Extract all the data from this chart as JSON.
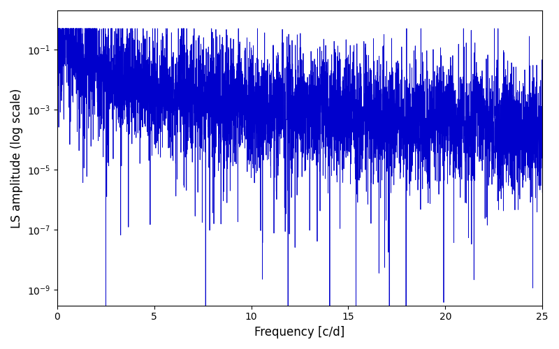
{
  "title": "",
  "xlabel": "Frequency [c/d]",
  "ylabel": "LS amplitude (log scale)",
  "xlim": [
    0,
    25
  ],
  "ylim": [
    3e-10,
    2.0
  ],
  "freq_max": 25.0,
  "n_points": 5000,
  "line_color": "#0000cc",
  "line_width": 0.6,
  "seed": 12345,
  "background_color": "#ffffff",
  "figsize": [
    8.0,
    5.0
  ],
  "dpi": 100,
  "yticks": [
    1e-09,
    1e-07,
    1e-05,
    0.001,
    0.1
  ]
}
